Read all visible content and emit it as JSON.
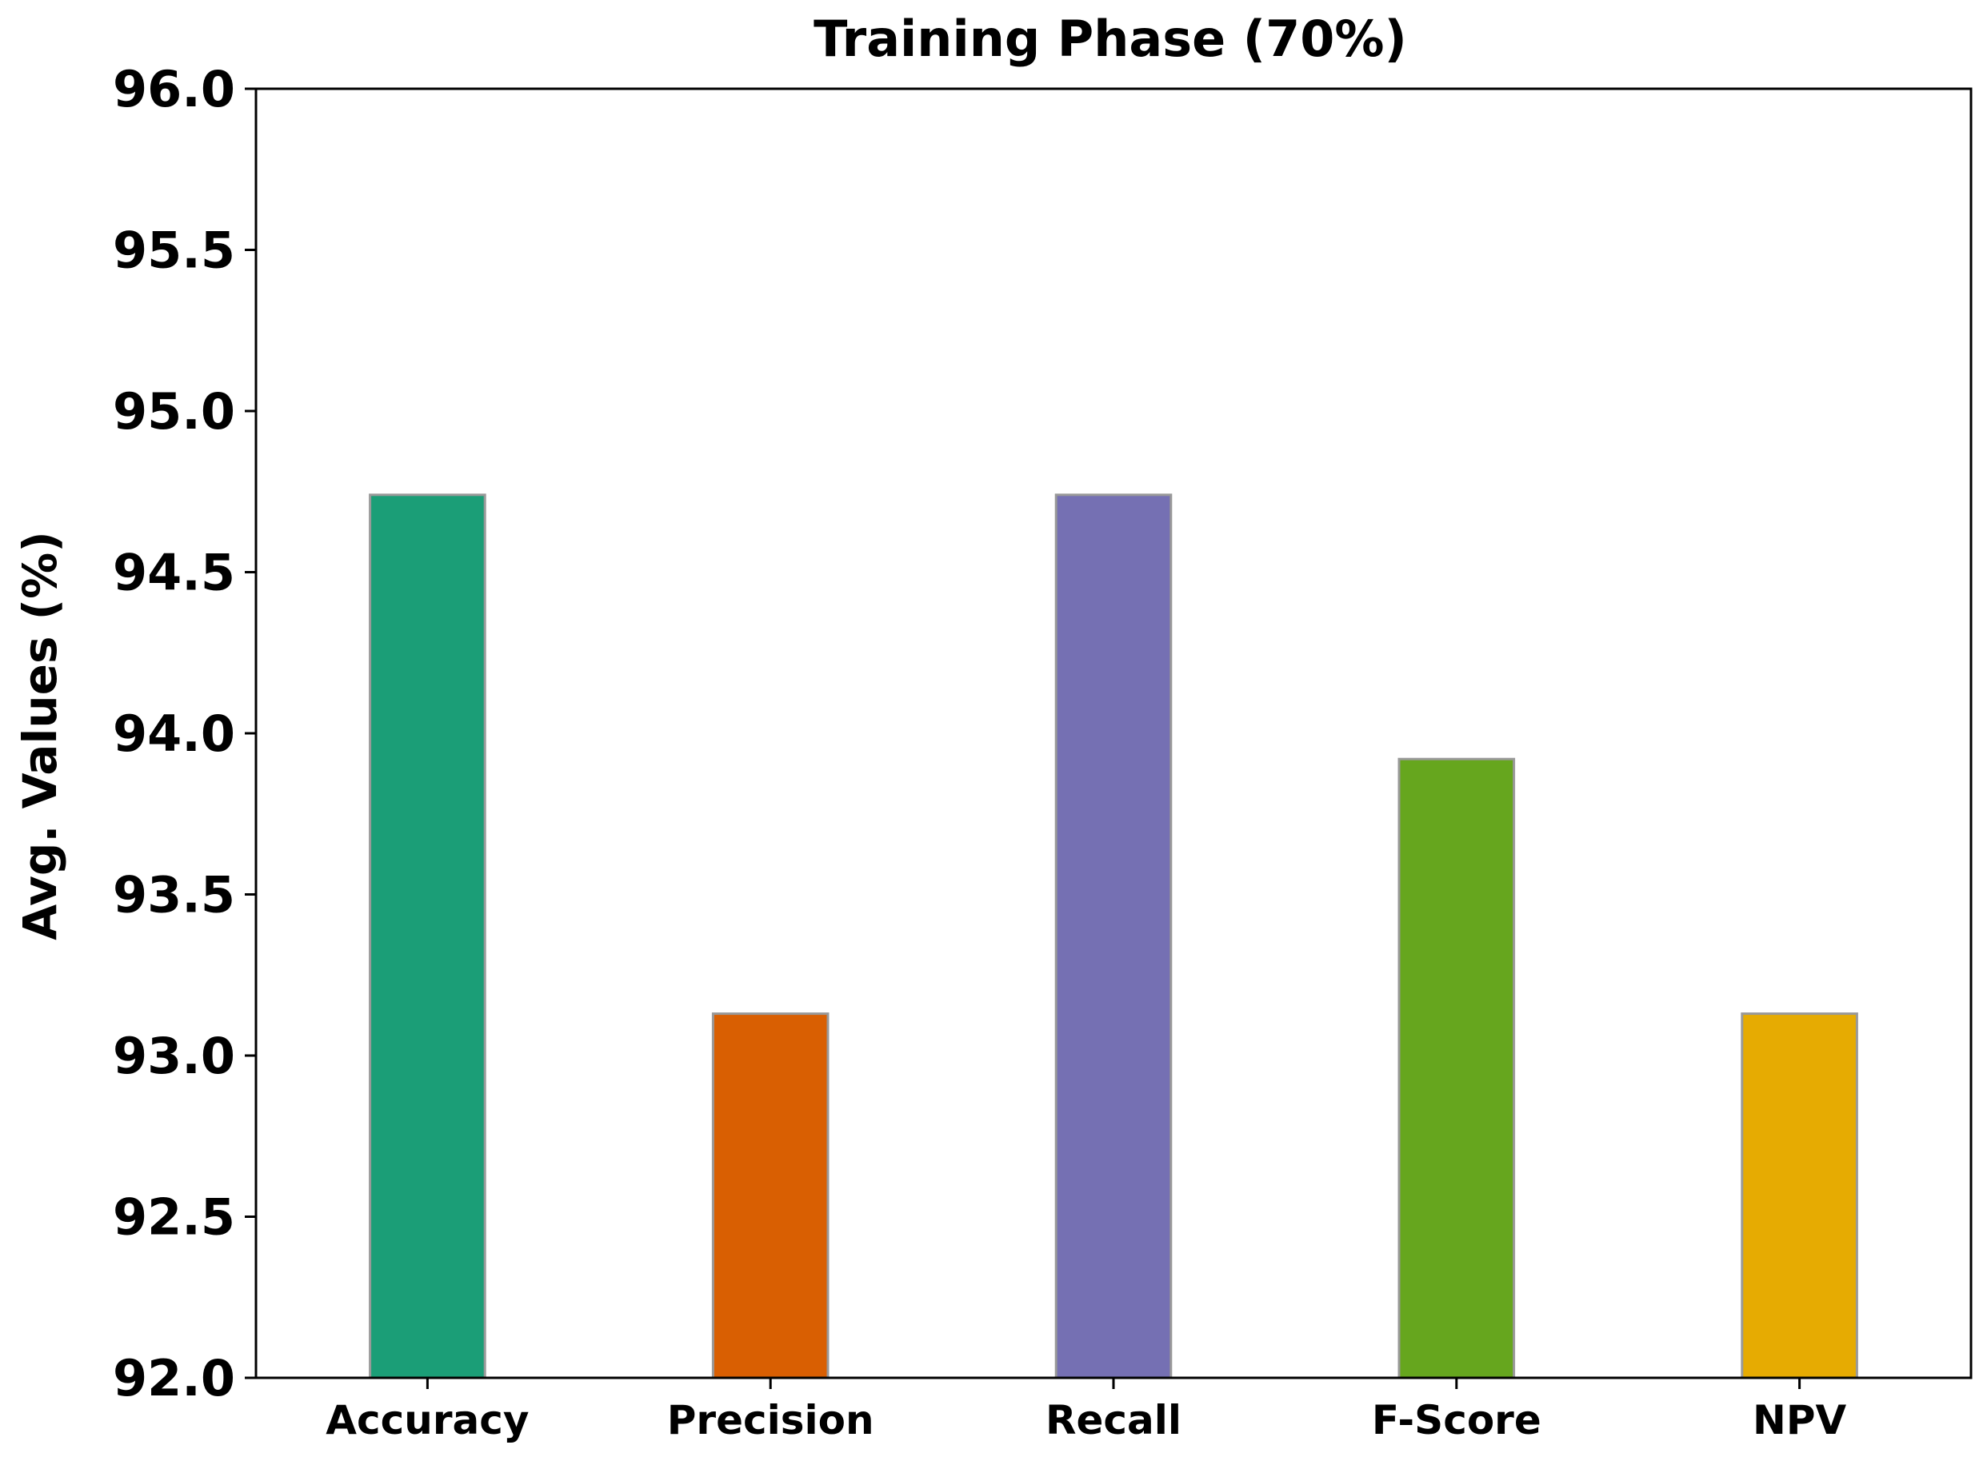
{
  "chart_data": {
    "type": "bar",
    "title": "Training Phase (70%)",
    "xlabel": "",
    "ylabel": "Avg. Values (%)",
    "categories": [
      "Accuracy",
      "Precision",
      "Recall",
      "F-Score",
      "NPV"
    ],
    "values": [
      94.74,
      93.13,
      94.74,
      93.92,
      93.13
    ],
    "colors": [
      "#1b9e77",
      "#d95f02",
      "#7570b3",
      "#66a61e",
      "#e6ab02"
    ],
    "bar_edge_color": "#999999",
    "ylim": [
      92.0,
      96.0
    ],
    "yticks": [
      "92.0",
      "92.5",
      "93.0",
      "93.5",
      "94.0",
      "94.5",
      "95.0",
      "95.5",
      "96.0"
    ],
    "grid": false,
    "legend": "none"
  }
}
